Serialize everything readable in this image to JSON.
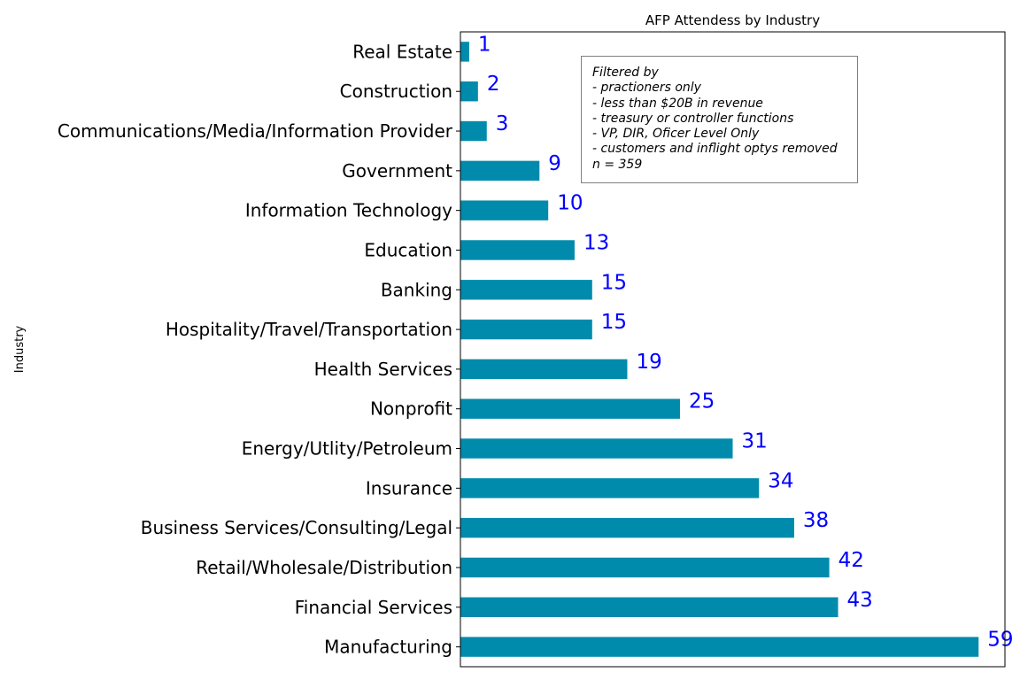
{
  "chart_data": {
    "type": "bar",
    "orientation": "horizontal",
    "title": "AFP Attendess by Industry",
    "ylabel": "Industry",
    "xlabel": "",
    "xlim": [
      0,
      62
    ],
    "grid": false,
    "categories": [
      "Manufacturing",
      "Financial Services",
      "Retail/Wholesale/Distribution",
      "Business Services/Consulting/Legal",
      "Insurance",
      "Energy/Utlity/Petroleum",
      "Nonprofit",
      "Health Services",
      "Hospitality/Travel/Transportation",
      "Banking",
      "Education",
      "Information Technology",
      "Government",
      "Communications/Media/Information Provider",
      "Construction",
      "Real Estate"
    ],
    "values": [
      59,
      43,
      42,
      38,
      34,
      31,
      25,
      19,
      15,
      15,
      13,
      10,
      9,
      3,
      2,
      1
    ],
    "bar_color": "#008bad",
    "label_color": "#0000ff",
    "annotation_lines": [
      "Filtered by",
      "- practioners only",
      "- less than $20B in revenue",
      "- treasury or controller functions",
      "- VP, DIR, Oficer Level Only",
      "- customers and inflight optys removed",
      "n = 359"
    ]
  }
}
